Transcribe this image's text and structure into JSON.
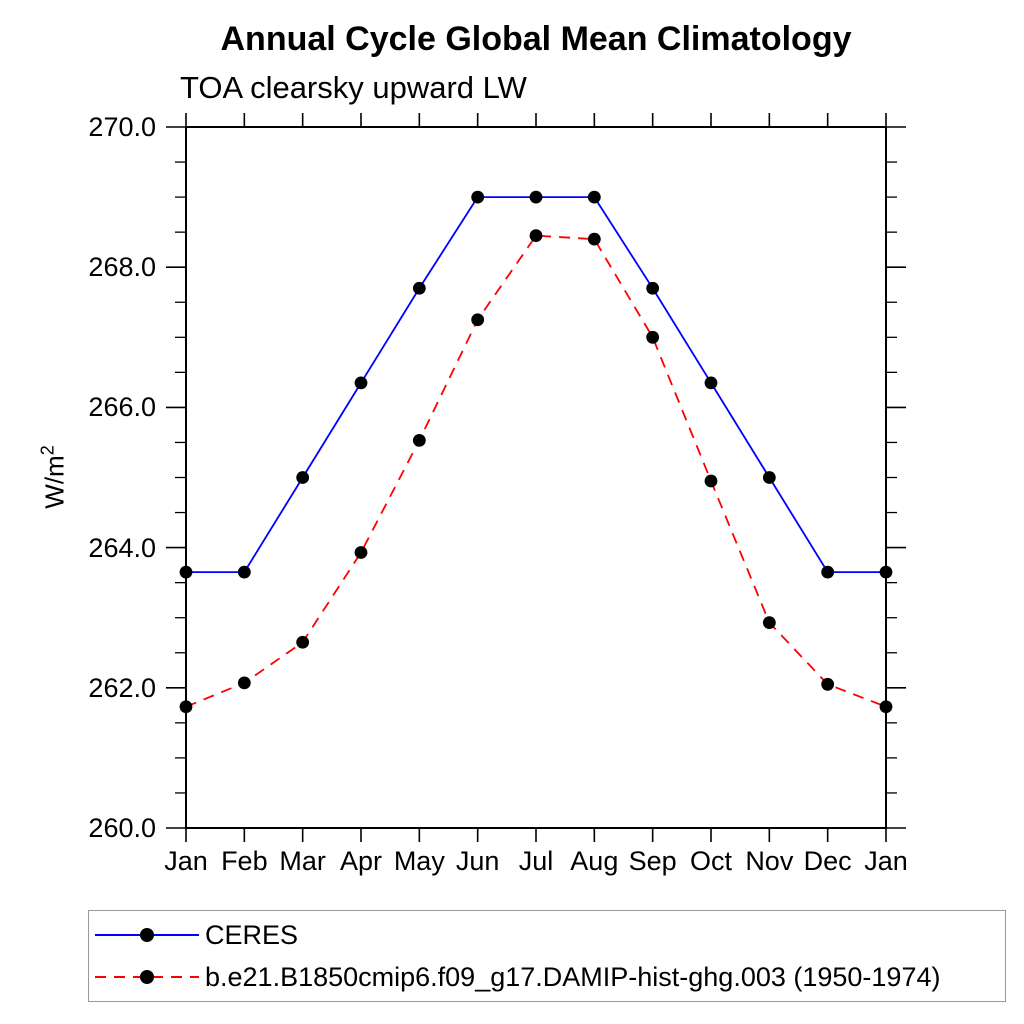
{
  "chart_data": {
    "type": "line",
    "title": "Annual Cycle Global Mean Climatology",
    "subtitle": "TOA clearsky upward LW",
    "ylabel": "W/m",
    "ylabel_sup": "2",
    "x_categories": [
      "Jan",
      "Feb",
      "Mar",
      "Apr",
      "May",
      "Jun",
      "Jul",
      "Aug",
      "Sep",
      "Oct",
      "Nov",
      "Dec",
      "Jan"
    ],
    "ylim": [
      260.0,
      270.0
    ],
    "ytick_major_values": [
      270.0,
      268.0,
      266.0,
      264.0,
      262.0,
      260.0
    ],
    "ytick_major_labels": [
      "270.0",
      "268.0",
      "266.0",
      "264.0",
      "262.0",
      "260.0"
    ],
    "ytick_minor_interval": 0.5,
    "grid": false,
    "legend_position": "bottom-left",
    "axis_color": "#000000",
    "marker_color": "#000000",
    "series": [
      {
        "name": "CERES",
        "color": "#0000ff",
        "line_style": "solid",
        "marker": "filled-circle",
        "values": [
          263.65,
          263.65,
          265.0,
          266.35,
          267.7,
          269.0,
          269.0,
          269.0,
          267.7,
          266.35,
          265.0,
          263.65,
          263.65
        ]
      },
      {
        "name": "b.e21.B1850cmip6.f09_g17.DAMIP-hist-ghg.003 (1950-1974)",
        "color": "#ff0000",
        "line_style": "dashed",
        "marker": "filled-circle",
        "values": [
          261.73,
          262.07,
          262.65,
          263.93,
          265.53,
          267.25,
          268.45,
          268.4,
          267.0,
          264.95,
          262.93,
          262.05,
          261.73
        ]
      }
    ]
  }
}
